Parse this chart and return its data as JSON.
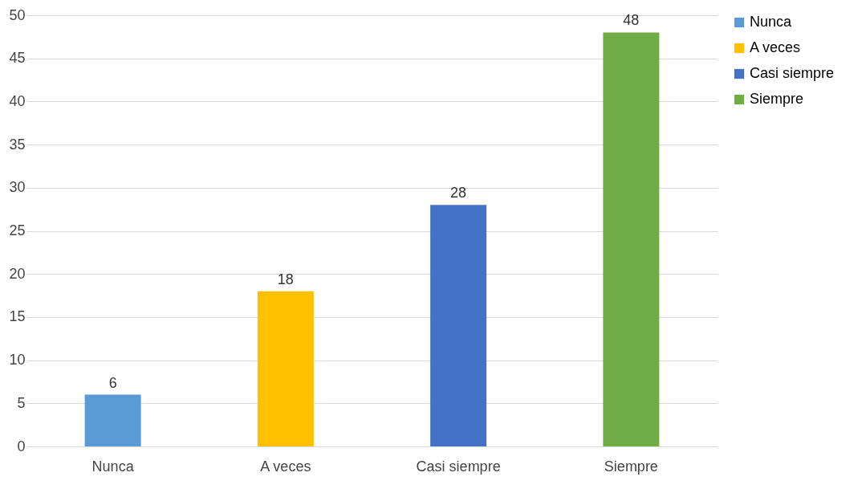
{
  "chart_data": {
    "type": "bar",
    "categories": [
      "Nunca",
      "A veces",
      "Casi siempre",
      "Siempre"
    ],
    "series": [
      {
        "name": "Nunca",
        "color": "#5b9bd5",
        "values": [
          6,
          null,
          null,
          null
        ]
      },
      {
        "name": "A veces",
        "color": "#ffc000",
        "values": [
          null,
          18,
          null,
          null
        ]
      },
      {
        "name": "Casi siempre",
        "color": "#4472c4",
        "values": [
          null,
          null,
          28,
          null
        ]
      },
      {
        "name": "Siempre",
        "color": "#70ad47",
        "values": [
          null,
          null,
          null,
          48
        ]
      }
    ],
    "ylim": [
      0,
      50
    ],
    "yticks": [
      0,
      5,
      10,
      15,
      20,
      25,
      30,
      35,
      40,
      45,
      50
    ],
    "grid": "y",
    "legend": "right",
    "data_labels": true
  }
}
